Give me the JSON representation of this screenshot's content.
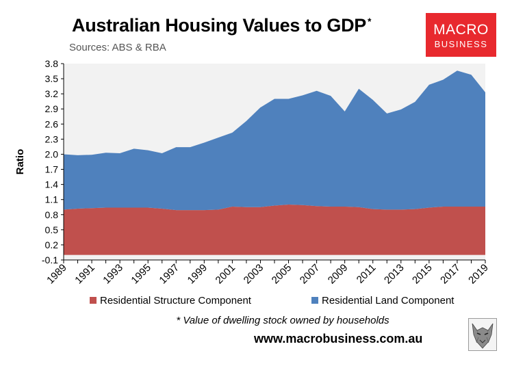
{
  "header": {
    "title": "Australian Housing Values to GDP",
    "title_marker": "*",
    "subtitle": "Sources: ABS & RBA"
  },
  "logo": {
    "line1": "MACRO",
    "line2": "BUSINESS",
    "color": "#e8292e"
  },
  "footer": {
    "note": "* Value of dwelling stock owned by households",
    "url": "www.macrobusiness.com.au",
    "wolf_icon": "wolf-icon"
  },
  "chart_data": {
    "type": "area",
    "stacked": true,
    "ylabel": "Ratio",
    "xlabel": "",
    "ylim": [
      -0.1,
      3.8
    ],
    "yticks": [
      -0.1,
      0.2,
      0.5,
      0.8,
      1.1,
      1.4,
      1.7,
      2.0,
      2.3,
      2.6,
      2.9,
      3.2,
      3.5,
      3.8
    ],
    "ytick_labels": [
      "-0.1",
      "0.2",
      "0.5",
      "0.8",
      "1.1",
      "1.4",
      "1.7",
      "2.0",
      "2.3",
      "2.6",
      "2.9",
      "3.2",
      "3.5",
      "3.8"
    ],
    "xlim": [
      1989,
      2019
    ],
    "xtick_labels": [
      "1989",
      "1991",
      "1993",
      "1995",
      "1997",
      "1999",
      "2001",
      "2003",
      "2005",
      "2007",
      "2009",
      "2011",
      "2013",
      "2015",
      "2017",
      "2019"
    ],
    "x": [
      1989,
      1990,
      1991,
      1992,
      1993,
      1994,
      1995,
      1996,
      1997,
      1998,
      1999,
      2000,
      2001,
      2002,
      2003,
      2004,
      2005,
      2006,
      2007,
      2008,
      2009,
      2010,
      2011,
      2012,
      2013,
      2014,
      2015,
      2016,
      2017,
      2018,
      2019
    ],
    "series": [
      {
        "name": "Residential Structure Component",
        "color": "#c0504d",
        "values": [
          0.9,
          0.92,
          0.93,
          0.94,
          0.94,
          0.94,
          0.94,
          0.92,
          0.89,
          0.89,
          0.89,
          0.9,
          0.96,
          0.95,
          0.95,
          0.98,
          1.0,
          0.99,
          0.97,
          0.96,
          0.96,
          0.95,
          0.91,
          0.9,
          0.9,
          0.91,
          0.94,
          0.96,
          0.96,
          0.96,
          0.96
        ]
      },
      {
        "name": "Residential Land Component",
        "color": "#4f81bd",
        "values": [
          1.1,
          1.06,
          1.06,
          1.09,
          1.08,
          1.17,
          1.14,
          1.1,
          1.25,
          1.25,
          1.34,
          1.43,
          1.47,
          1.71,
          1.98,
          2.12,
          2.1,
          2.18,
          2.29,
          2.2,
          1.89,
          2.35,
          2.17,
          1.91,
          1.99,
          2.13,
          2.44,
          2.52,
          2.7,
          2.62,
          2.27
        ]
      }
    ],
    "legend_position": "bottom",
    "plot_background": "#f2f2f2"
  }
}
